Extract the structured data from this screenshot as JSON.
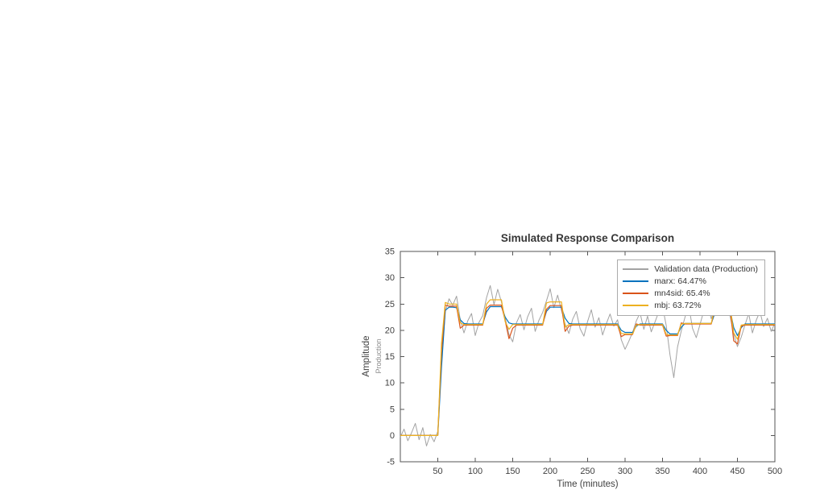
{
  "figure": {
    "background": "#ffffff"
  },
  "chart_data": {
    "type": "line",
    "title": "Simulated Response Comparison",
    "xlabel": "Time (minutes)",
    "ylabel": "Amplitude",
    "ylabel_sub": "Production",
    "xlim": [
      0,
      500
    ],
    "ylim": [
      -5,
      35
    ],
    "xticks": [
      50,
      100,
      150,
      200,
      250,
      300,
      350,
      400,
      450,
      500
    ],
    "yticks": [
      -5,
      0,
      5,
      10,
      15,
      20,
      25,
      30,
      35
    ],
    "grid": false,
    "legend_position": "top-right",
    "axis_color": "#555555",
    "text_color": "#3f3f3f",
    "x": [
      0,
      5,
      10,
      15,
      20,
      25,
      30,
      35,
      40,
      45,
      50,
      55,
      60,
      65,
      70,
      75,
      80,
      85,
      90,
      95,
      100,
      105,
      110,
      115,
      120,
      125,
      130,
      135,
      140,
      145,
      150,
      155,
      160,
      165,
      170,
      175,
      180,
      185,
      190,
      195,
      200,
      205,
      210,
      215,
      220,
      225,
      230,
      235,
      240,
      245,
      250,
      255,
      260,
      265,
      270,
      275,
      280,
      285,
      290,
      295,
      300,
      305,
      310,
      315,
      320,
      325,
      330,
      335,
      340,
      345,
      350,
      355,
      360,
      365,
      370,
      375,
      380,
      385,
      390,
      395,
      400,
      405,
      410,
      415,
      420,
      425,
      430,
      435,
      440,
      445,
      450,
      455,
      460,
      465,
      470,
      475,
      480,
      485,
      490,
      495,
      500
    ],
    "series": [
      {
        "id": "validation",
        "name": "Validation data (Production)",
        "color": "#a3a3a3",
        "values": [
          -0.3,
          1.2,
          -1.0,
          0.5,
          2.3,
          -0.8,
          1.5,
          -2.0,
          0.2,
          -1.2,
          0.8,
          14.0,
          23.5,
          26.0,
          24.8,
          26.5,
          22.0,
          19.5,
          21.8,
          23.2,
          19.0,
          21.5,
          22.8,
          26.2,
          28.5,
          24.9,
          27.8,
          25.4,
          22.3,
          19.2,
          17.8,
          21.4,
          23.0,
          20.1,
          22.6,
          24.2,
          19.8,
          21.9,
          23.4,
          25.6,
          27.9,
          24.3,
          26.7,
          23.8,
          21.2,
          19.4,
          22.1,
          23.6,
          20.3,
          18.9,
          21.7,
          23.9,
          20.6,
          22.4,
          19.1,
          21.3,
          23.1,
          20.8,
          22.0,
          18.2,
          16.4,
          17.9,
          19.6,
          21.8,
          23.3,
          20.2,
          22.7,
          19.7,
          21.6,
          23.5,
          24.6,
          20.9,
          15.3,
          11.0,
          16.8,
          19.9,
          22.5,
          24.8,
          20.4,
          18.6,
          21.1,
          23.7,
          25.1,
          22.2,
          24.4,
          26.3,
          23.9,
          25.7,
          22.8,
          19.3,
          16.9,
          18.7,
          21.0,
          23.2,
          19.5,
          21.9,
          23.6,
          20.7,
          22.3,
          19.8,
          21.4
        ]
      },
      {
        "id": "marx",
        "name": "marx: 64.47%",
        "color": "#0072BD",
        "values": [
          0,
          0,
          0,
          0,
          0,
          0,
          0,
          0,
          0,
          0,
          0,
          13.0,
          23.8,
          24.4,
          24.4,
          24.3,
          22.0,
          21.3,
          21.2,
          21.2,
          21.2,
          21.2,
          21.2,
          23.5,
          24.5,
          24.5,
          24.5,
          24.5,
          22.5,
          21.4,
          21.2,
          21.2,
          21.2,
          21.2,
          21.2,
          21.2,
          21.2,
          21.2,
          21.2,
          23.6,
          24.4,
          24.4,
          24.4,
          24.4,
          22.3,
          21.3,
          21.2,
          21.2,
          21.2,
          21.2,
          21.2,
          21.2,
          21.2,
          21.2,
          21.2,
          21.2,
          21.2,
          21.2,
          21.2,
          20.0,
          19.6,
          19.6,
          19.6,
          20.8,
          21.2,
          21.2,
          21.2,
          21.2,
          21.2,
          21.2,
          21.2,
          20.0,
          19.3,
          19.3,
          19.3,
          20.6,
          21.3,
          21.3,
          21.3,
          21.3,
          21.3,
          21.3,
          21.3,
          21.3,
          23.3,
          24.0,
          24.0,
          24.0,
          24.0,
          20.5,
          19.0,
          20.5,
          21.2,
          21.2,
          21.2,
          21.2,
          21.2,
          21.2,
          21.2,
          21.2,
          21.2
        ]
      },
      {
        "id": "mn4sid",
        "name": "mn4sid: 65.4%",
        "color": "#D95319",
        "values": [
          0,
          0,
          0,
          0,
          0,
          0,
          0,
          0,
          0,
          0,
          0,
          16.0,
          24.8,
          24.6,
          24.6,
          24.6,
          20.4,
          21.0,
          21.0,
          21.0,
          21.0,
          21.0,
          21.0,
          24.2,
          24.8,
          24.8,
          24.8,
          24.8,
          21.8,
          18.4,
          20.4,
          21.0,
          21.0,
          21.0,
          21.0,
          21.0,
          21.0,
          21.0,
          21.0,
          24.0,
          24.7,
          24.7,
          24.7,
          24.7,
          19.8,
          20.8,
          21.0,
          21.0,
          21.0,
          21.0,
          21.0,
          21.0,
          21.0,
          21.0,
          21.0,
          21.0,
          21.0,
          21.0,
          21.0,
          18.8,
          19.2,
          19.2,
          19.2,
          21.2,
          21.0,
          21.0,
          21.0,
          21.0,
          21.0,
          21.0,
          21.0,
          18.9,
          19.0,
          19.0,
          19.0,
          21.4,
          21.2,
          21.2,
          21.2,
          21.2,
          21.2,
          21.2,
          21.2,
          21.2,
          24.2,
          24.3,
          24.3,
          24.3,
          24.3,
          18.0,
          17.4,
          20.8,
          21.0,
          21.0,
          21.0,
          21.0,
          21.0,
          21.0,
          21.0,
          21.0,
          21.0
        ]
      },
      {
        "id": "mbj",
        "name": "mbj: 63.72%",
        "color": "#EDB120",
        "values": [
          0,
          0,
          0,
          0,
          0,
          0,
          0,
          0,
          0,
          0,
          0,
          17.5,
          25.3,
          25.0,
          25.0,
          25.0,
          21.4,
          21.1,
          21.1,
          21.1,
          21.1,
          21.1,
          21.1,
          25.0,
          25.8,
          25.8,
          25.8,
          25.8,
          21.6,
          20.2,
          21.1,
          21.1,
          21.1,
          21.1,
          21.1,
          21.1,
          21.1,
          21.1,
          21.1,
          25.2,
          25.4,
          25.4,
          25.4,
          25.4,
          20.6,
          21.1,
          21.1,
          21.1,
          21.1,
          21.1,
          21.1,
          21.1,
          21.1,
          21.1,
          21.1,
          21.1,
          21.1,
          21.1,
          21.1,
          19.4,
          19.3,
          19.3,
          19.3,
          21.0,
          21.1,
          21.1,
          21.1,
          21.1,
          21.1,
          21.1,
          21.1,
          19.2,
          19.1,
          19.1,
          19.1,
          21.2,
          21.3,
          21.3,
          21.3,
          21.3,
          21.3,
          21.3,
          21.3,
          21.3,
          24.6,
          24.8,
          24.8,
          24.8,
          24.8,
          19.5,
          18.3,
          21.0,
          21.1,
          21.1,
          21.1,
          21.1,
          21.1,
          21.1,
          21.1,
          21.1,
          21.1
        ]
      }
    ]
  }
}
